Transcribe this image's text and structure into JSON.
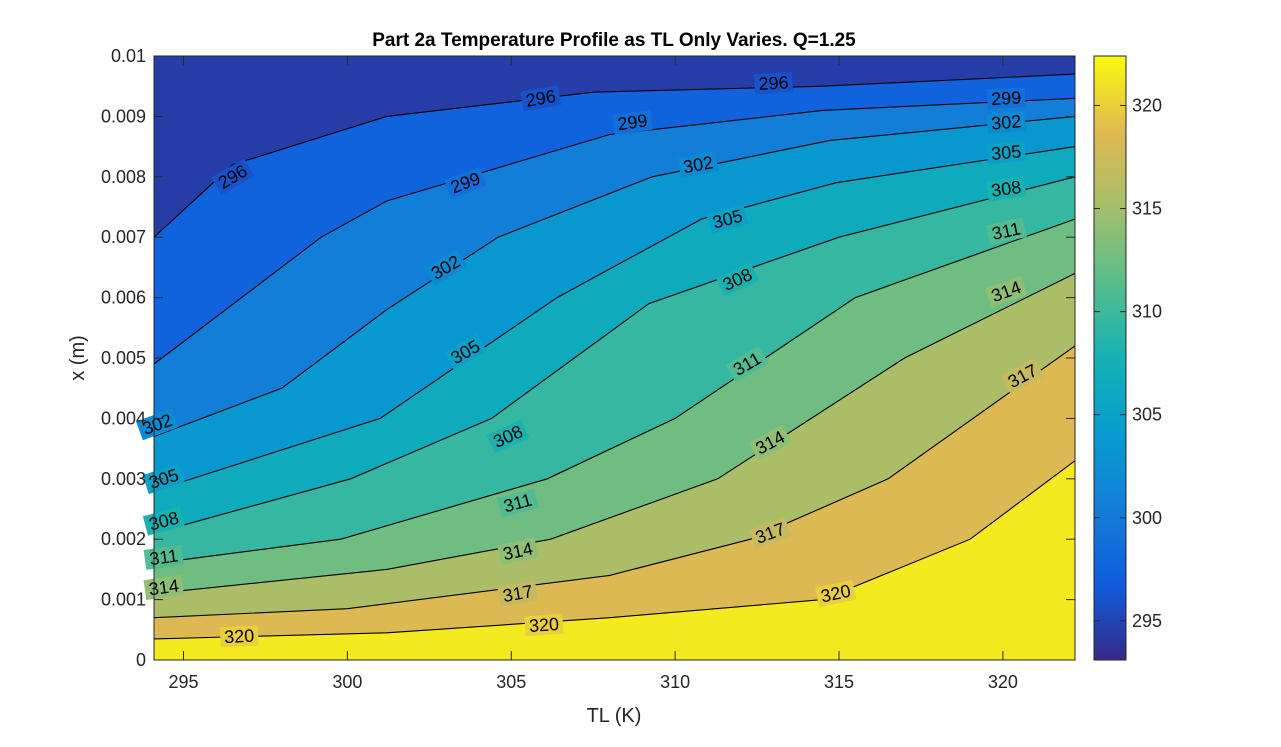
{
  "chart_data": {
    "type": "heatmap",
    "title": "Part 2a Temperature Profile as TL Only Varies. Q=1.25",
    "xlabel": "TL (K)",
    "ylabel": "x (m)",
    "xlim": [
      294.1,
      322.2
    ],
    "ylim": [
      0,
      0.01
    ],
    "x_ticks": [
      "295",
      "300",
      "305",
      "310",
      "315",
      "320"
    ],
    "y_ticks": [
      "0",
      "0.001",
      "0.002",
      "0.003",
      "0.004",
      "0.005",
      "0.006",
      "0.007",
      "0.008",
      "0.009",
      "0.01"
    ],
    "colorbar": {
      "range": [
        293.1,
        322.4
      ],
      "ticks": [
        "295",
        "300",
        "305",
        "310",
        "315",
        "320"
      ],
      "colormap": "parula"
    },
    "contour_levels": [
      296,
      299,
      302,
      305,
      308,
      311,
      314,
      317,
      320
    ],
    "contours": [
      {
        "level": 296,
        "label": "296",
        "points": [
          [
            294.1,
            0.007
          ],
          [
            296.5,
            0.0082
          ],
          [
            301.2,
            0.009
          ],
          [
            307.5,
            0.0094
          ],
          [
            314.5,
            0.0095
          ],
          [
            322.2,
            0.0097
          ]
        ]
      },
      {
        "level": 299,
        "label": "299",
        "points": [
          [
            294.1,
            0.0049
          ],
          [
            299.2,
            0.007
          ],
          [
            301.2,
            0.0076
          ],
          [
            308.0,
            0.0087
          ],
          [
            314.5,
            0.0091
          ],
          [
            322.2,
            0.0093
          ]
        ]
      },
      {
        "level": 302,
        "label": "302",
        "points": [
          [
            294.1,
            0.0037
          ],
          [
            298.0,
            0.0045
          ],
          [
            301.2,
            0.0058
          ],
          [
            304.6,
            0.007
          ],
          [
            309.3,
            0.008
          ],
          [
            314.7,
            0.0086
          ],
          [
            322.2,
            0.009
          ]
        ]
      },
      {
        "level": 305,
        "label": "305",
        "points": [
          [
            294.1,
            0.0028
          ],
          [
            301.0,
            0.004
          ],
          [
            306.4,
            0.006
          ],
          [
            310.8,
            0.0073
          ],
          [
            314.9,
            0.0079
          ],
          [
            322.2,
            0.0085
          ]
        ]
      },
      {
        "level": 308,
        "label": "308",
        "points": [
          [
            294.1,
            0.0021
          ],
          [
            300.1,
            0.003
          ],
          [
            304.4,
            0.004
          ],
          [
            309.2,
            0.0059
          ],
          [
            315.0,
            0.007
          ],
          [
            322.2,
            0.008
          ]
        ]
      },
      {
        "level": 311,
        "label": "311",
        "points": [
          [
            294.1,
            0.0016
          ],
          [
            299.8,
            0.002
          ],
          [
            306.1,
            0.003
          ],
          [
            310.0,
            0.004
          ],
          [
            315.5,
            0.006
          ],
          [
            322.2,
            0.0073
          ]
        ]
      },
      {
        "level": 314,
        "label": "314",
        "points": [
          [
            294.1,
            0.0011
          ],
          [
            301.2,
            0.0015
          ],
          [
            306.2,
            0.002
          ],
          [
            311.3,
            0.003
          ],
          [
            317.0,
            0.005
          ],
          [
            322.2,
            0.0064
          ]
        ]
      },
      {
        "level": 317,
        "label": "317",
        "points": [
          [
            294.1,
            0.0007
          ],
          [
            300.0,
            0.00085
          ],
          [
            308.0,
            0.0014
          ],
          [
            312.3,
            0.002
          ],
          [
            316.5,
            0.003
          ],
          [
            322.2,
            0.0052
          ]
        ]
      },
      {
        "level": 320,
        "label": "320",
        "points": [
          [
            294.1,
            0.00035
          ],
          [
            301.2,
            0.00045
          ],
          [
            308.0,
            0.0007
          ],
          [
            314.5,
            0.001
          ],
          [
            319.0,
            0.002
          ],
          [
            322.2,
            0.0033
          ]
        ]
      }
    ],
    "contour_labels": [
      {
        "level": 296,
        "text": "296",
        "x": 296.5,
        "y": 0.008,
        "angle": -30
      },
      {
        "level": 296,
        "text": "296",
        "x": 305.9,
        "y": 0.0093,
        "angle": -10
      },
      {
        "level": 296,
        "text": "296",
        "x": 313.0,
        "y": 0.00955,
        "angle": -3
      },
      {
        "level": 299,
        "text": "299",
        "x": 320.1,
        "y": 0.0093,
        "angle": -3
      },
      {
        "level": 299,
        "text": "299",
        "x": 308.7,
        "y": 0.0089,
        "angle": -8
      },
      {
        "level": 299,
        "text": "299",
        "x": 303.6,
        "y": 0.0079,
        "angle": -20
      },
      {
        "level": 302,
        "text": "302",
        "x": 320.1,
        "y": 0.0089,
        "angle": -5
      },
      {
        "level": 302,
        "text": "302",
        "x": 310.7,
        "y": 0.0082,
        "angle": -10
      },
      {
        "level": 302,
        "text": "302",
        "x": 303.0,
        "y": 0.0065,
        "angle": -30
      },
      {
        "level": 302,
        "text": "302",
        "x": 294.2,
        "y": 0.0039,
        "angle": -20
      },
      {
        "level": 305,
        "text": "305",
        "x": 320.1,
        "y": 0.0084,
        "angle": -5
      },
      {
        "level": 305,
        "text": "305",
        "x": 311.6,
        "y": 0.0073,
        "angle": -15
      },
      {
        "level": 305,
        "text": "305",
        "x": 303.6,
        "y": 0.0051,
        "angle": -30
      },
      {
        "level": 305,
        "text": "305",
        "x": 294.4,
        "y": 0.003,
        "angle": -18
      },
      {
        "level": 308,
        "text": "308",
        "x": 320.1,
        "y": 0.0078,
        "angle": -8
      },
      {
        "level": 308,
        "text": "308",
        "x": 311.9,
        "y": 0.0063,
        "angle": -25
      },
      {
        "level": 308,
        "text": "308",
        "x": 304.9,
        "y": 0.0037,
        "angle": -25
      },
      {
        "level": 308,
        "text": "308",
        "x": 294.4,
        "y": 0.0023,
        "angle": -15
      },
      {
        "level": 311,
        "text": "311",
        "x": 320.1,
        "y": 0.0071,
        "angle": -12
      },
      {
        "level": 311,
        "text": "311",
        "x": 312.2,
        "y": 0.0049,
        "angle": -30
      },
      {
        "level": 311,
        "text": "311",
        "x": 305.2,
        "y": 0.0026,
        "angle": -15
      },
      {
        "level": 311,
        "text": "311",
        "x": 294.4,
        "y": 0.0017,
        "angle": -8
      },
      {
        "level": 314,
        "text": "314",
        "x": 320.1,
        "y": 0.0061,
        "angle": -20
      },
      {
        "level": 314,
        "text": "314",
        "x": 312.9,
        "y": 0.0036,
        "angle": -28
      },
      {
        "level": 314,
        "text": "314",
        "x": 305.2,
        "y": 0.0018,
        "angle": -12
      },
      {
        "level": 314,
        "text": "314",
        "x": 294.4,
        "y": 0.0012,
        "angle": -8
      },
      {
        "level": 317,
        "text": "317",
        "x": 320.6,
        "y": 0.0047,
        "angle": -28
      },
      {
        "level": 317,
        "text": "317",
        "x": 312.9,
        "y": 0.0021,
        "angle": -20
      },
      {
        "level": 317,
        "text": "317",
        "x": 305.2,
        "y": 0.0011,
        "angle": -10
      },
      {
        "level": 320,
        "text": "320",
        "x": 314.9,
        "y": 0.0011,
        "angle": -12
      },
      {
        "level": 320,
        "text": "320",
        "x": 306.0,
        "y": 0.00058,
        "angle": -4
      },
      {
        "level": 320,
        "text": "320",
        "x": 296.7,
        "y": 0.00039,
        "angle": -3
      }
    ]
  }
}
